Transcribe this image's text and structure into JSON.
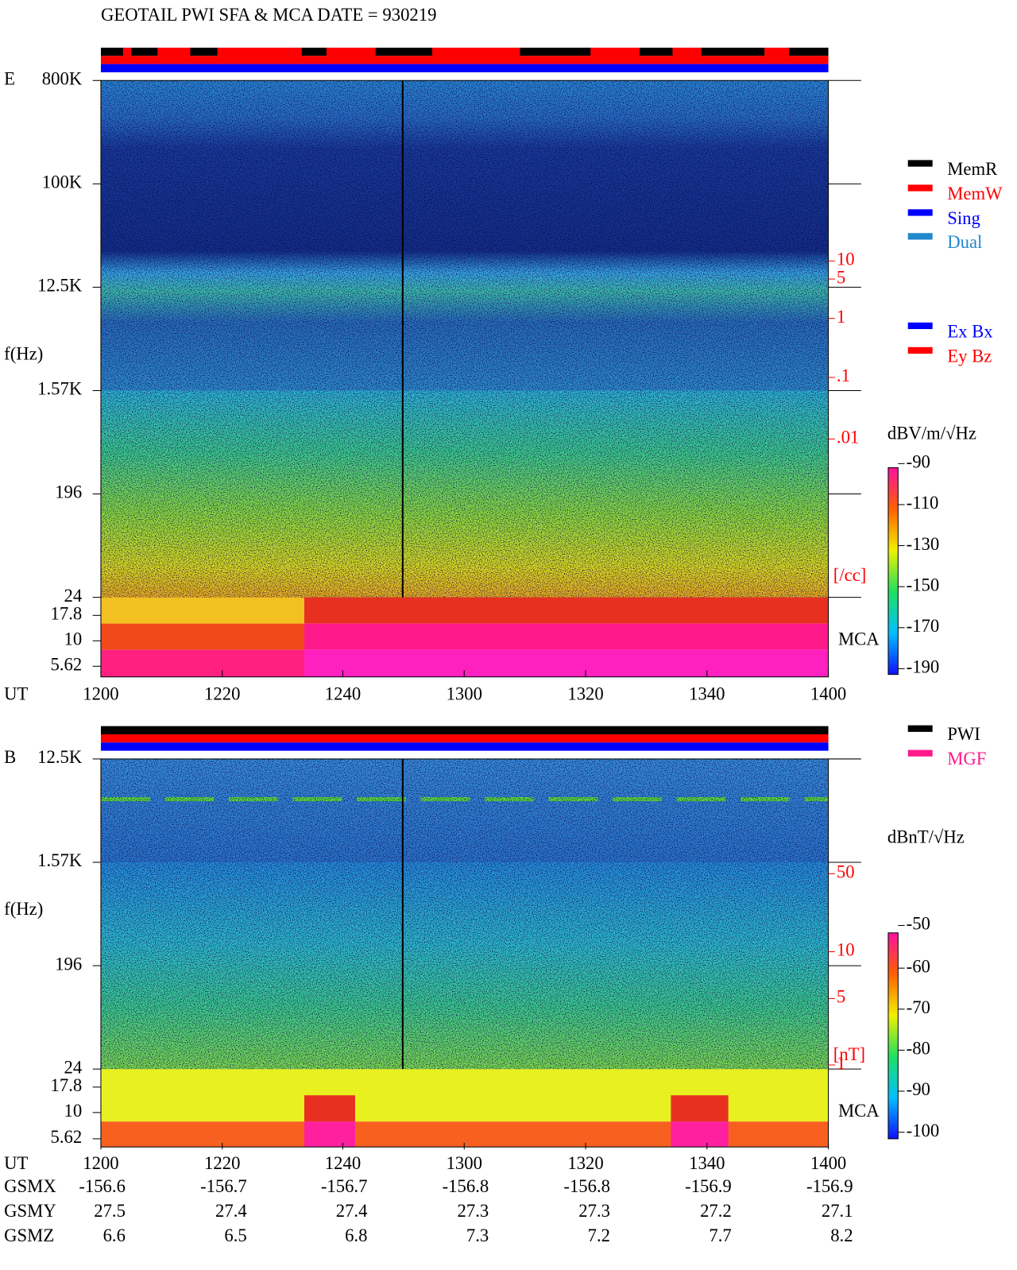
{
  "header": {
    "title": "GEOTAIL  PWI SFA & MCA   DATE = 930219"
  },
  "panels": [
    {
      "label": "E",
      "y_axis_label": "f(Hz)",
      "y_ticks": [
        "800K",
        "100K",
        "12.5K",
        "1.57K",
        "196",
        "24",
        "17.8",
        "10",
        "5.62"
      ],
      "right_ticks": [
        "10",
        "5",
        "1",
        ".1",
        ".01"
      ],
      "right_unit": "[/cc]",
      "mca": "MCA",
      "x_axis_label": "UT",
      "x_ticks": [
        "1200",
        "1220",
        "1240",
        "1300",
        "1320",
        "1340",
        "1400"
      ],
      "legend": [
        "MemR",
        "MemW",
        "Sing",
        "Dual"
      ],
      "legend2": [
        "Ex Bx",
        "Ey Bz"
      ],
      "colorbar_unit": "dBV/m/√Hz",
      "colorbar_ticks": [
        "-90",
        "-110",
        "-130",
        "-150",
        "-170",
        "-190"
      ]
    },
    {
      "label": "B",
      "y_axis_label": "f(Hz)",
      "y_ticks": [
        "12.5K",
        "1.57K",
        "196",
        "24",
        "17.8",
        "10",
        "5.62"
      ],
      "right_ticks": [
        "50",
        "10",
        "5",
        "1"
      ],
      "right_unit": "[nT]",
      "mca": "MCA",
      "x_axis_label": "UT",
      "x_ticks": [
        "1200",
        "1220",
        "1240",
        "1300",
        "1320",
        "1340",
        "1400"
      ],
      "legend": [
        "PWI",
        "MGF"
      ],
      "colorbar_unit": "dBnT/√Hz",
      "colorbar_ticks": [
        "-50",
        "-60",
        "-70",
        "-80",
        "-90",
        "-100"
      ]
    }
  ],
  "orbit": {
    "rows": [
      {
        "label": "GSMX",
        "values": [
          "-156.6",
          "-156.7",
          "-156.7",
          "-156.8",
          "-156.8",
          "-156.9",
          "-156.9"
        ]
      },
      {
        "label": "GSMY",
        "values": [
          "27.5",
          "27.4",
          "27.4",
          "27.3",
          "27.3",
          "27.2",
          "27.1"
        ]
      },
      {
        "label": "GSMZ",
        "values": [
          "6.6",
          "6.5",
          "6.8",
          "7.3",
          "7.2",
          "7.7",
          "8.2"
        ]
      }
    ]
  }
}
